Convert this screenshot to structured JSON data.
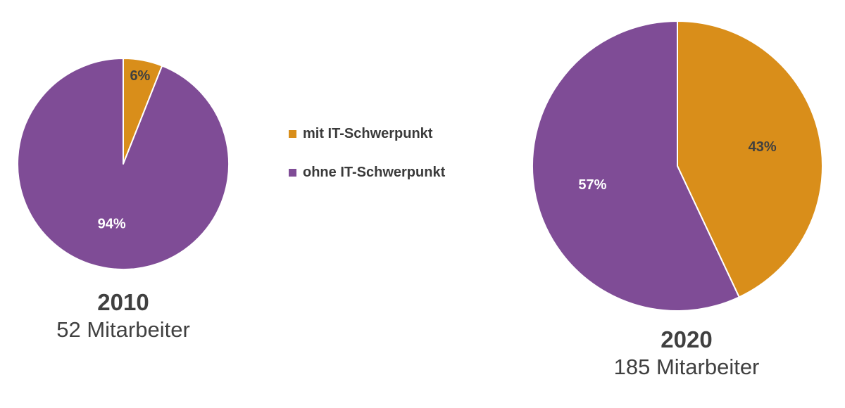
{
  "colors": {
    "mit": "#D98E1A",
    "ohne": "#7F4C96",
    "label_dark": "#404040",
    "label_light": "#ffffff"
  },
  "legend": [
    {
      "label": "mit IT-Schwerpunkt",
      "color": "#D98E1A"
    },
    {
      "label": "ohne IT-Schwerpunkt",
      "color": "#7F4C96"
    }
  ],
  "chart_data": [
    {
      "type": "pie",
      "year": "2010",
      "subtitle": "52 Mitarbeiter",
      "slices": [
        {
          "name": "mit IT-Schwerpunkt",
          "value": 6,
          "label": "6%",
          "color": "#D98E1A",
          "label_color": "#404040"
        },
        {
          "name": "ohne IT-Schwerpunkt",
          "value": 94,
          "label": "94%",
          "color": "#7F4C96",
          "label_color": "#ffffff"
        }
      ]
    },
    {
      "type": "pie",
      "year": "2020",
      "subtitle": "185 Mitarbeiter",
      "slices": [
        {
          "name": "mit IT-Schwerpunkt",
          "value": 43,
          "label": "43%",
          "color": "#D98E1A",
          "label_color": "#404040"
        },
        {
          "name": "ohne IT-Schwerpunkt",
          "value": 57,
          "label": "57%",
          "color": "#7F4C96",
          "label_color": "#ffffff"
        }
      ]
    }
  ]
}
